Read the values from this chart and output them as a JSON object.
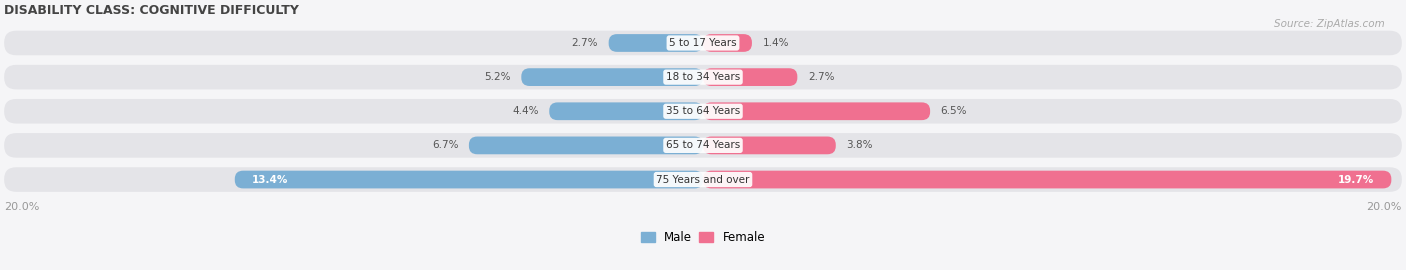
{
  "title": "DISABILITY CLASS: COGNITIVE DIFFICULTY",
  "source": "Source: ZipAtlas.com",
  "categories": [
    "5 to 17 Years",
    "18 to 34 Years",
    "35 to 64 Years",
    "65 to 74 Years",
    "75 Years and over"
  ],
  "male_values": [
    2.7,
    5.2,
    4.4,
    6.7,
    13.4
  ],
  "female_values": [
    1.4,
    2.7,
    6.5,
    3.8,
    19.7
  ],
  "max_val": 20.0,
  "male_color": "#7BAFD4",
  "female_color": "#F07090",
  "row_bg_color": "#e4e4e8",
  "outer_bg_color": "#f5f5f7",
  "label_color": "#555555",
  "title_color": "#444444",
  "axis_label_color": "#999999",
  "legend_male_color": "#7BAFD4",
  "legend_female_color": "#F07090"
}
